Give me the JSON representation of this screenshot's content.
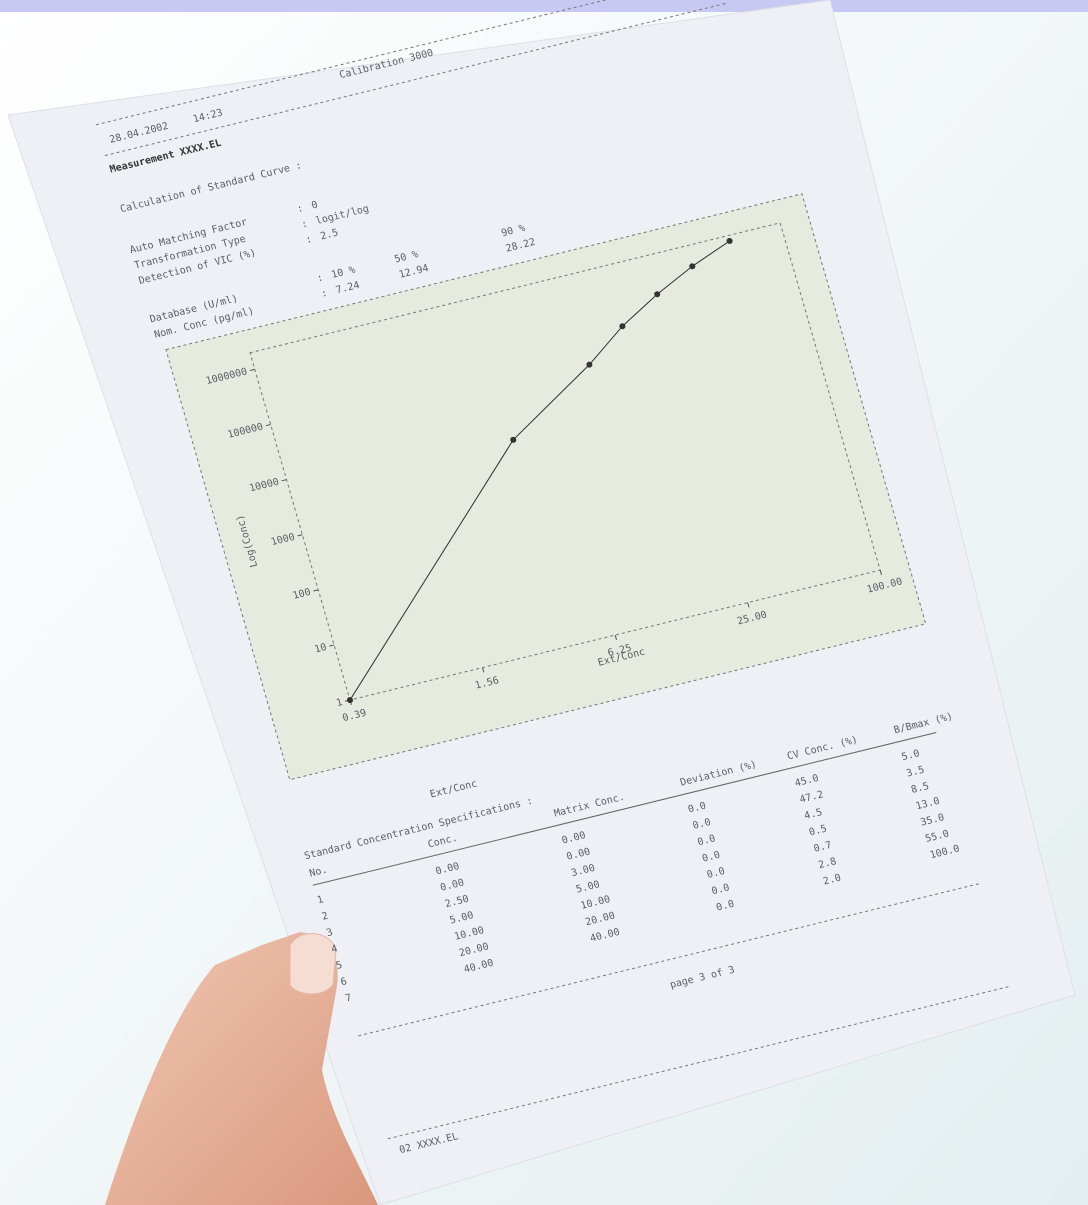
{
  "header": {
    "date": "28.04.2002",
    "time": "14:23",
    "instrument": "Calibration 3000",
    "measurement": "Measurement XXXX.EL"
  },
  "calculation": {
    "title": "Calculation of Standard Curve :",
    "rows": [
      [
        "Auto Matching Factor",
        ":",
        "0"
      ],
      [
        "Transformation Type",
        ":",
        "logit/log"
      ],
      [
        "Detection of VIC (%)",
        ":",
        "2.5"
      ]
    ]
  },
  "database": {
    "rows": [
      [
        "Database (U/ml)",
        ":",
        "10 %",
        "50 %",
        "90 %"
      ],
      [
        "Nom. Conc (pg/ml)",
        ":",
        "7.24",
        "12.94",
        "28.22"
      ]
    ]
  },
  "chart_data": {
    "type": "line",
    "color": "#333333",
    "x": [
      0.39,
      4.0,
      10.4,
      16,
      24.6,
      37.5,
      58
    ],
    "values": [
      1,
      5400,
      49000,
      160000,
      400000,
      850000,
      1600000
    ],
    "xlim": [
      0.39,
      100
    ],
    "xticks": [
      0.39,
      1.56,
      6.25,
      {
        "value": 25,
        "label": "25.00"
      },
      {
        "value": 100,
        "label": "100.00"
      }
    ],
    "ylim": [
      1,
      2000000
    ],
    "yticks": [
      1,
      10,
      100,
      1000,
      10000,
      100000,
      1000000
    ],
    "xlog": true,
    "ylog": true,
    "xlabel": "Ext/Conc",
    "ylabel": "Log(Conc)"
  },
  "table": {
    "title": "Standard Concentration Specifications :",
    "headers": [
      "No.",
      "Conc.",
      "Matrix Conc.",
      "Deviation (%)",
      "CV Conc. (%)",
      "B/Bmax (%)"
    ],
    "rows": [
      [
        "1",
        "0.00",
        "0.00",
        "0.0",
        "45.0",
        "5.0"
      ],
      [
        "2",
        "0.00",
        "0.00",
        "0.0",
        "47.2",
        "3.5"
      ],
      [
        "3",
        "2.50",
        "3.00",
        "0.0",
        "4.5",
        "8.5"
      ],
      [
        "4",
        "5.00",
        "5.00",
        "0.0",
        "0.5",
        "13.0"
      ],
      [
        "5",
        "10.00",
        "10.00",
        "0.0",
        "0.7",
        "35.0"
      ],
      [
        "6",
        "20.00",
        "20.00",
        "0.0",
        "2.8",
        "55.0"
      ],
      [
        "7",
        "40.00",
        "40.00",
        "0.0",
        "2.0",
        "100.0"
      ]
    ]
  },
  "footer": {
    "page": "page 3 of 3",
    "file": "02 XXXX.EL"
  }
}
